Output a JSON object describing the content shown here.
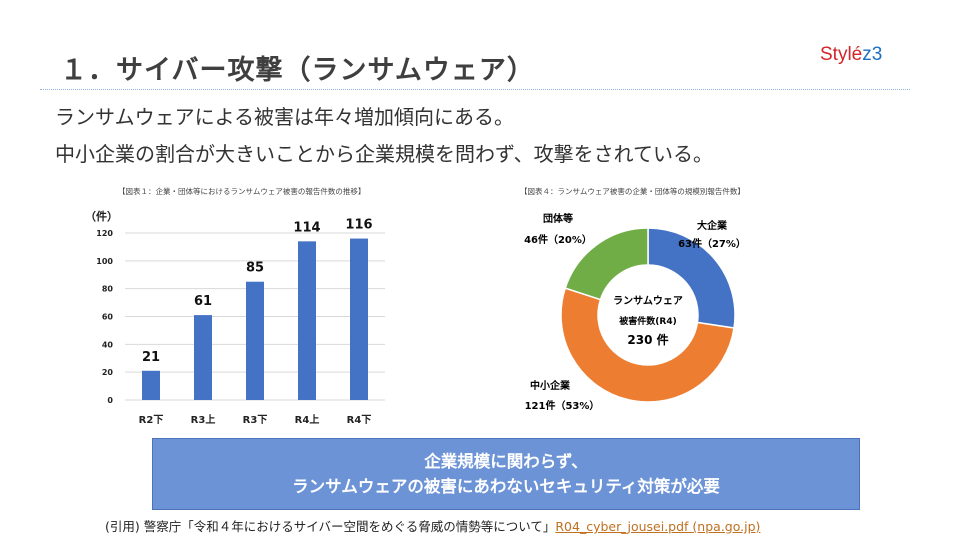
{
  "title": "１．サイバー攻撃（ランサムウェア）",
  "logo": {
    "text": "Stylé",
    "suffix": "z3"
  },
  "body": [
    "ランサムウェアによる被害は年々増加傾向にある。",
    "中小企業の割合が大きいことから企業規模を問わず、攻撃をされている。"
  ],
  "callout": [
    "企業規模に関わらず、",
    "ランサムウェアの被害にあわないセキュリティ対策が必要"
  ],
  "citation": {
    "prefix": "(引用) 警察庁「令和４年におけるサイバー空間をめぐる脅威の情勢等について」",
    "link": "R04_cyber_jousei.pdf (npa.go.jp)"
  },
  "chart_data": [
    {
      "type": "bar",
      "title": "【図表１：企業・団体等におけるランサムウェア被害の報告件数の推移】",
      "ylabel": "（件）",
      "categories": [
        "R2下",
        "R3上",
        "R3下",
        "R4上",
        "R4下"
      ],
      "values": [
        21,
        61,
        85,
        114,
        116
      ],
      "ylim": [
        0,
        120
      ],
      "yticks": [
        0,
        20,
        40,
        60,
        80,
        100,
        120
      ],
      "color": "#4472c4",
      "grid": true
    },
    {
      "type": "pie",
      "title": "【図表４：ランサムウェア被害の企業・団体等の規模別報告件数】",
      "center_label": [
        "ランサムウェア",
        "被害件数(R4)",
        "230 件"
      ],
      "slices": [
        {
          "name": "大企業",
          "value": 63,
          "label": "63件（27%）",
          "color": "#4472c4"
        },
        {
          "name": "中小企業",
          "value": 121,
          "label": "121件（53%）",
          "color": "#ed7d31"
        },
        {
          "name": "団体等",
          "value": 46,
          "label": "46件（20%）",
          "color": "#70ad47"
        }
      ]
    }
  ]
}
